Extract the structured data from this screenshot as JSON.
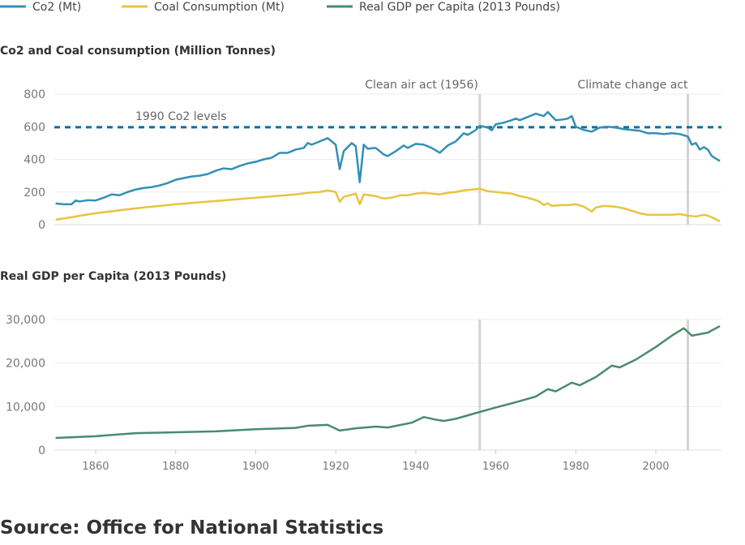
{
  "chart_data": [
    {
      "type": "line",
      "title": "Co2 and Coal consumption (Million Tonnes)",
      "ylim": [
        0,
        800
      ],
      "yticks": [
        0,
        200,
        400,
        600,
        800
      ],
      "xlim": [
        1850,
        2016
      ],
      "reference_line": {
        "label": "1990 Co2 levels",
        "value": 597,
        "color": "#0a6fa0"
      },
      "annotations": [
        {
          "label": "Clean air act (1956)",
          "x": 1956
        },
        {
          "label": "Climate change act",
          "x": 2008
        }
      ],
      "series": [
        {
          "name": "Co2 (Mt)",
          "color": "#3290b5",
          "points": [
            [
              1850,
              130
            ],
            [
              1852,
              125
            ],
            [
              1854,
              125
            ],
            [
              1855,
              148
            ],
            [
              1856,
              142
            ],
            [
              1858,
              150
            ],
            [
              1860,
              148
            ],
            [
              1862,
              165
            ],
            [
              1864,
              185
            ],
            [
              1866,
              180
            ],
            [
              1868,
              200
            ],
            [
              1870,
              215
            ],
            [
              1872,
              225
            ],
            [
              1874,
              230
            ],
            [
              1876,
              240
            ],
            [
              1878,
              255
            ],
            [
              1880,
              275
            ],
            [
              1882,
              285
            ],
            [
              1884,
              295
            ],
            [
              1886,
              300
            ],
            [
              1888,
              310
            ],
            [
              1890,
              330
            ],
            [
              1892,
              345
            ],
            [
              1894,
              340
            ],
            [
              1896,
              360
            ],
            [
              1898,
              375
            ],
            [
              1900,
              385
            ],
            [
              1902,
              400
            ],
            [
              1904,
              410
            ],
            [
              1906,
              440
            ],
            [
              1908,
              440
            ],
            [
              1910,
              460
            ],
            [
              1912,
              470
            ],
            [
              1913,
              500
            ],
            [
              1914,
              490
            ],
            [
              1916,
              510
            ],
            [
              1918,
              530
            ],
            [
              1919,
              510
            ],
            [
              1920,
              490
            ],
            [
              1921,
              340
            ],
            [
              1922,
              450
            ],
            [
              1924,
              500
            ],
            [
              1925,
              480
            ],
            [
              1926,
              260
            ],
            [
              1927,
              490
            ],
            [
              1928,
              465
            ],
            [
              1930,
              470
            ],
            [
              1932,
              430
            ],
            [
              1933,
              420
            ],
            [
              1935,
              450
            ],
            [
              1937,
              485
            ],
            [
              1938,
              470
            ],
            [
              1940,
              495
            ],
            [
              1942,
              490
            ],
            [
              1944,
              470
            ],
            [
              1946,
              440
            ],
            [
              1948,
              485
            ],
            [
              1950,
              510
            ],
            [
              1952,
              560
            ],
            [
              1953,
              550
            ],
            [
              1955,
              580
            ],
            [
              1956,
              605
            ],
            [
              1958,
              595
            ],
            [
              1959,
              578
            ],
            [
              1960,
              615
            ],
            [
              1962,
              625
            ],
            [
              1964,
              640
            ],
            [
              1965,
              650
            ],
            [
              1966,
              640
            ],
            [
              1968,
              660
            ],
            [
              1970,
              680
            ],
            [
              1972,
              665
            ],
            [
              1973,
              690
            ],
            [
              1975,
              640
            ],
            [
              1977,
              645
            ],
            [
              1978,
              650
            ],
            [
              1979,
              665
            ],
            [
              1980,
              600
            ],
            [
              1982,
              580
            ],
            [
              1984,
              570
            ],
            [
              1986,
              595
            ],
            [
              1988,
              600
            ],
            [
              1990,
              595
            ],
            [
              1992,
              585
            ],
            [
              1994,
              580
            ],
            [
              1996,
              575
            ],
            [
              1998,
              560
            ],
            [
              2000,
              560
            ],
            [
              2002,
              555
            ],
            [
              2004,
              560
            ],
            [
              2006,
              555
            ],
            [
              2008,
              540
            ],
            [
              2009,
              490
            ],
            [
              2010,
              500
            ],
            [
              2011,
              460
            ],
            [
              2012,
              475
            ],
            [
              2013,
              460
            ],
            [
              2014,
              420
            ],
            [
              2016,
              390
            ]
          ]
        },
        {
          "name": "Coal Consumption (Mt)",
          "color": "#e8c440",
          "points": [
            [
              1850,
              30
            ],
            [
              1860,
              70
            ],
            [
              1870,
              100
            ],
            [
              1880,
              125
            ],
            [
              1890,
              145
            ],
            [
              1900,
              165
            ],
            [
              1910,
              185
            ],
            [
              1913,
              195
            ],
            [
              1916,
              200
            ],
            [
              1918,
              210
            ],
            [
              1920,
              200
            ],
            [
              1921,
              140
            ],
            [
              1922,
              170
            ],
            [
              1925,
              190
            ],
            [
              1926,
              125
            ],
            [
              1927,
              185
            ],
            [
              1930,
              175
            ],
            [
              1932,
              160
            ],
            [
              1934,
              165
            ],
            [
              1936,
              180
            ],
            [
              1938,
              180
            ],
            [
              1940,
              190
            ],
            [
              1942,
              195
            ],
            [
              1944,
              190
            ],
            [
              1946,
              185
            ],
            [
              1948,
              195
            ],
            [
              1950,
              200
            ],
            [
              1952,
              210
            ],
            [
              1954,
              215
            ],
            [
              1956,
              220
            ],
            [
              1958,
              205
            ],
            [
              1960,
              200
            ],
            [
              1962,
              195
            ],
            [
              1964,
              190
            ],
            [
              1966,
              175
            ],
            [
              1968,
              165
            ],
            [
              1970,
              150
            ],
            [
              1971,
              140
            ],
            [
              1972,
              120
            ],
            [
              1973,
              130
            ],
            [
              1974,
              115
            ],
            [
              1976,
              120
            ],
            [
              1978,
              120
            ],
            [
              1980,
              125
            ],
            [
              1982,
              110
            ],
            [
              1984,
              80
            ],
            [
              1985,
              105
            ],
            [
              1987,
              115
            ],
            [
              1990,
              110
            ],
            [
              1992,
              100
            ],
            [
              1994,
              85
            ],
            [
              1996,
              70
            ],
            [
              1998,
              60
            ],
            [
              2000,
              60
            ],
            [
              2004,
              60
            ],
            [
              2006,
              65
            ],
            [
              2008,
              55
            ],
            [
              2010,
              50
            ],
            [
              2012,
              60
            ],
            [
              2013,
              55
            ],
            [
              2014,
              45
            ],
            [
              2016,
              20
            ]
          ]
        }
      ]
    },
    {
      "type": "line",
      "title": "Real GDP per Capita (2013 Pounds)",
      "ylim": [
        0,
        30000
      ],
      "yticks": [
        0,
        10000,
        20000,
        30000
      ],
      "ytick_labels": [
        "0",
        "10,000",
        "20,000",
        "30,000"
      ],
      "xlim": [
        1850,
        2016
      ],
      "xticks": [
        1860,
        1880,
        1900,
        1920,
        1940,
        1960,
        1980,
        2000
      ],
      "annotations": [
        {
          "x": 1956
        },
        {
          "x": 2008
        }
      ],
      "series": [
        {
          "name": "Real GDP per Capita (2013 Pounds)",
          "color": "#4a8b6c",
          "points": [
            [
              1850,
              2800
            ],
            [
              1860,
              3200
            ],
            [
              1870,
              3900
            ],
            [
              1880,
              4100
            ],
            [
              1890,
              4300
            ],
            [
              1900,
              4800
            ],
            [
              1910,
              5100
            ],
            [
              1913,
              5600
            ],
            [
              1918,
              5800
            ],
            [
              1921,
              4500
            ],
            [
              1925,
              5000
            ],
            [
              1930,
              5400
            ],
            [
              1933,
              5200
            ],
            [
              1939,
              6300
            ],
            [
              1942,
              7600
            ],
            [
              1945,
              7000
            ],
            [
              1947,
              6700
            ],
            [
              1950,
              7200
            ],
            [
              1955,
              8500
            ],
            [
              1960,
              9800
            ],
            [
              1965,
              11000
            ],
            [
              1970,
              12300
            ],
            [
              1973,
              14000
            ],
            [
              1975,
              13500
            ],
            [
              1979,
              15500
            ],
            [
              1981,
              14900
            ],
            [
              1985,
              16800
            ],
            [
              1989,
              19400
            ],
            [
              1991,
              19000
            ],
            [
              1995,
              20800
            ],
            [
              2000,
              23700
            ],
            [
              2004,
              26300
            ],
            [
              2007,
              28000
            ],
            [
              2009,
              26300
            ],
            [
              2013,
              27000
            ],
            [
              2016,
              28500
            ]
          ]
        }
      ]
    }
  ],
  "source": "Source: Office for National Statistics"
}
